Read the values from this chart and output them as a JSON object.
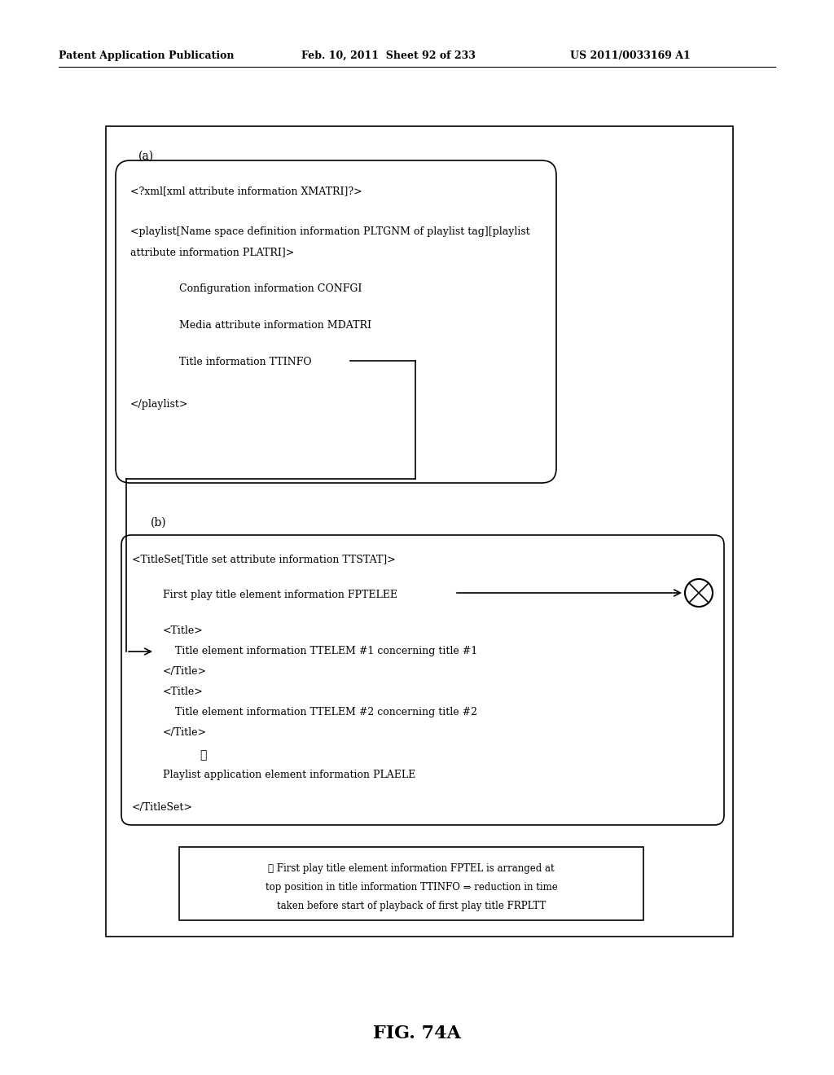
{
  "background_color": "#ffffff",
  "header_left": "Patent Application Publication",
  "header_mid": "Feb. 10, 2011  Sheet 92 of 233",
  "header_right": "US 2011/0033169 A1",
  "figure_label": "FIG. 74A",
  "section_a_label": "(a)",
  "section_b_label": "(b)",
  "note_text_line1": "※ First play title element information FPTEL is arranged at",
  "note_text_line2": "top position in title information TTINFO ⇒ reduction in time",
  "note_text_line3": "taken before start of playback of first play title FRPLTT"
}
